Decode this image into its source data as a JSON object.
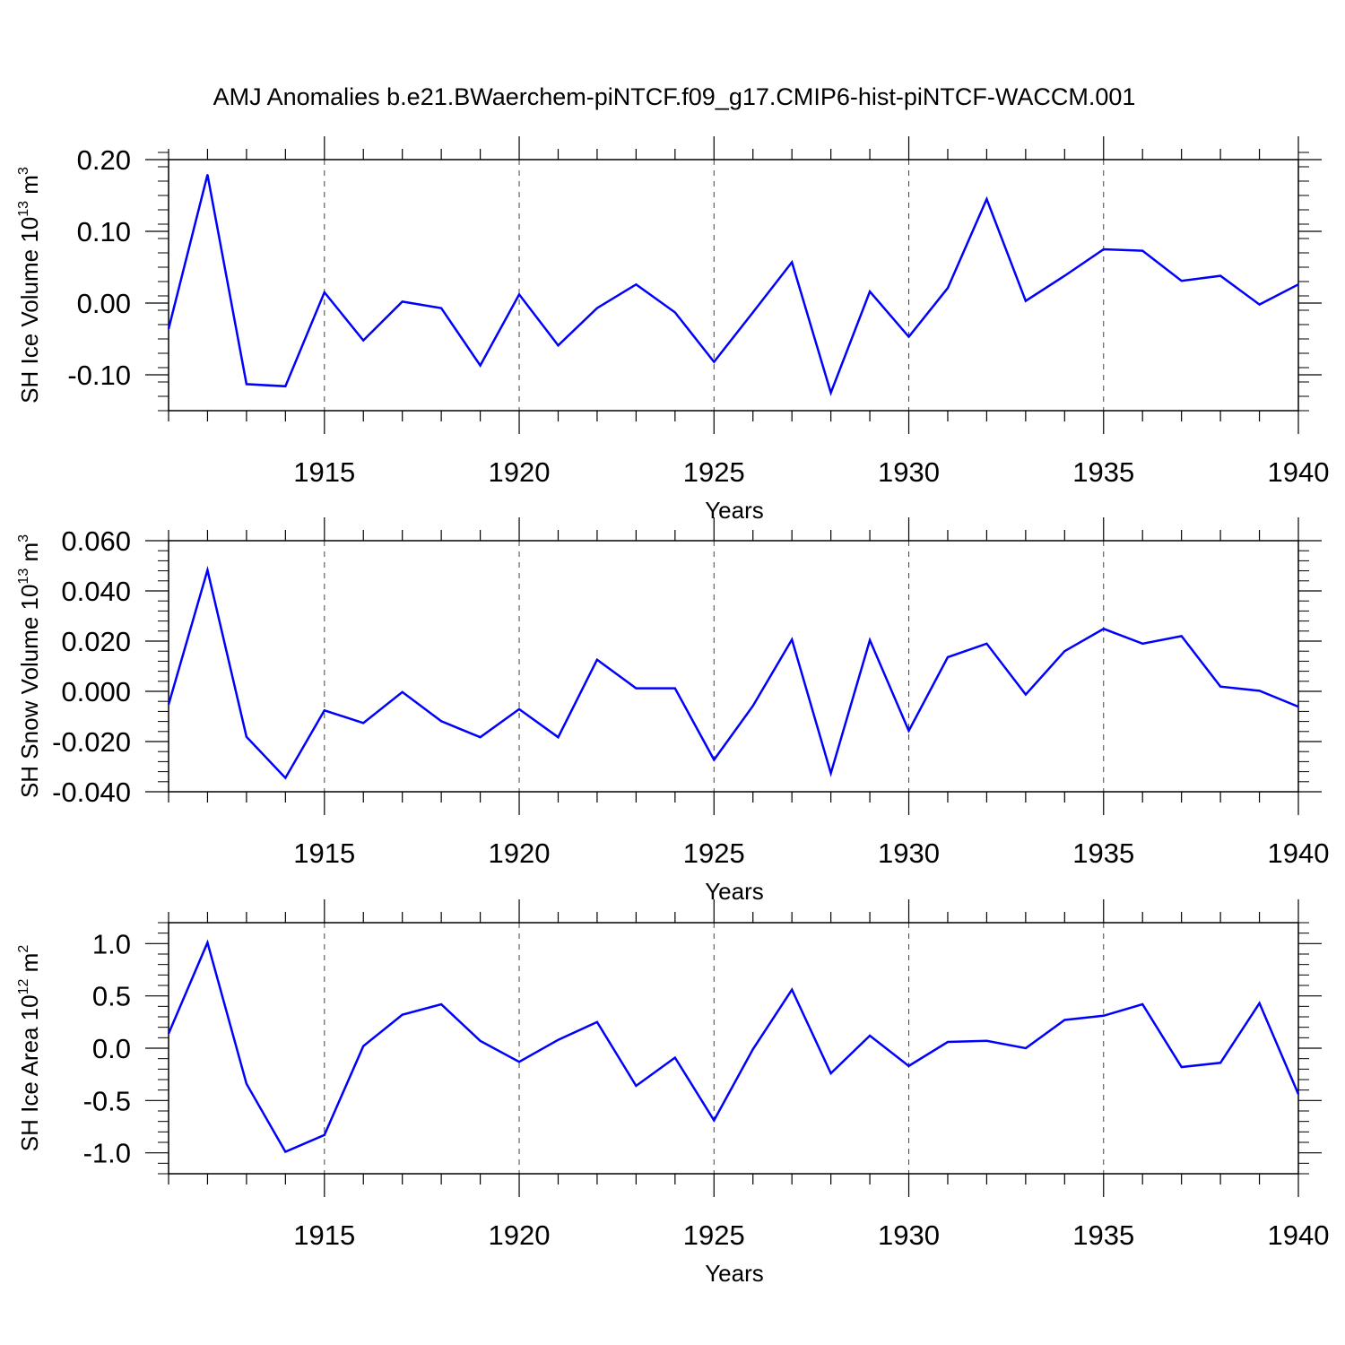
{
  "title": "AMJ Anomalies b.e21.BWaerchem-piNTCF.f09_g17.CMIP6-hist-piNTCF-WACCM.001",
  "chart_data": [
    {
      "type": "line",
      "ylabel": "SH Ice Volume 10",
      "ylabel_exp": "13",
      "ylabel_unit": " m",
      "ylabel_unit_exp": "3",
      "xlabel": "Years",
      "xlim": [
        1911,
        1940
      ],
      "ylim": [
        -0.15,
        0.2
      ],
      "yticks": [
        -0.1,
        0.0,
        0.1,
        0.2
      ],
      "ytick_labels": [
        "-0.10",
        "0.00",
        "0.10",
        "0.20"
      ],
      "xticks": [
        1915,
        1920,
        1925,
        1930,
        1935,
        1940
      ],
      "xtick_labels": [
        "1915",
        "1920",
        "1925",
        "1930",
        "1935",
        "1940"
      ],
      "x": [
        1911,
        1912,
        1913,
        1914,
        1915,
        1916,
        1917,
        1918,
        1919,
        1920,
        1921,
        1922,
        1923,
        1924,
        1925,
        1926,
        1927,
        1928,
        1929,
        1930,
        1931,
        1932,
        1933,
        1934,
        1935,
        1936,
        1937,
        1938,
        1939,
        1940
      ],
      "series": [
        {
          "name": "SH Ice Volume",
          "color": "#0000ff",
          "values": [
            -0.036,
            0.179,
            -0.113,
            -0.116,
            0.015,
            -0.052,
            0.002,
            -0.007,
            -0.087,
            0.012,
            -0.059,
            -0.007,
            0.026,
            -0.013,
            -0.082,
            -0.013,
            0.057,
            -0.125,
            0.016,
            -0.047,
            0.021,
            0.145,
            0.003,
            0.038,
            0.075,
            0.073,
            0.031,
            0.038,
            -0.002,
            0.026
          ]
        }
      ]
    },
    {
      "type": "line",
      "ylabel": "SH Snow Volume 10",
      "ylabel_exp": "13",
      "ylabel_unit": " m",
      "ylabel_unit_exp": "3",
      "xlabel": "Years",
      "xlim": [
        1911,
        1940
      ],
      "ylim": [
        -0.04,
        0.06
      ],
      "yticks": [
        -0.04,
        -0.02,
        0.0,
        0.02,
        0.04,
        0.06
      ],
      "ytick_labels": [
        "-0.040",
        "-0.020",
        "0.000",
        "0.020",
        "0.040",
        "0.060"
      ],
      "xticks": [
        1915,
        1920,
        1925,
        1930,
        1935,
        1940
      ],
      "xtick_labels": [
        "1915",
        "1920",
        "1925",
        "1930",
        "1935",
        "1940"
      ],
      "x": [
        1911,
        1912,
        1913,
        1914,
        1915,
        1916,
        1917,
        1918,
        1919,
        1920,
        1921,
        1922,
        1923,
        1924,
        1925,
        1926,
        1927,
        1928,
        1929,
        1930,
        1931,
        1932,
        1933,
        1934,
        1935,
        1936,
        1937,
        1938,
        1939,
        1940
      ],
      "series": [
        {
          "name": "SH Snow Volume",
          "color": "#0000ff",
          "values": [
            -0.0053,
            0.0483,
            -0.0181,
            -0.0345,
            -0.0076,
            -0.0126,
            -0.0003,
            -0.0119,
            -0.0183,
            -0.0071,
            -0.0183,
            0.0126,
            0.0012,
            0.0012,
            -0.0273,
            -0.0058,
            0.0206,
            -0.0326,
            0.0204,
            -0.0157,
            0.0136,
            0.019,
            -0.0013,
            0.016,
            0.0249,
            0.019,
            0.022,
            0.0019,
            0.0002,
            -0.0061
          ]
        }
      ]
    },
    {
      "type": "line",
      "ylabel": "SH Ice Area 10",
      "ylabel_exp": "12",
      "ylabel_unit": " m",
      "ylabel_unit_exp": "2",
      "xlabel": "Years",
      "xlim": [
        1911,
        1940
      ],
      "ylim": [
        -1.2,
        1.2
      ],
      "yticks": [
        -1.0,
        -0.5,
        0.0,
        0.5,
        1.0
      ],
      "ytick_labels": [
        "-1.0",
        "-0.5",
        "0.0",
        "0.5",
        "1.0"
      ],
      "xticks": [
        1915,
        1920,
        1925,
        1930,
        1935,
        1940
      ],
      "xtick_labels": [
        "1915",
        "1920",
        "1925",
        "1930",
        "1935",
        "1940"
      ],
      "x": [
        1911,
        1912,
        1913,
        1914,
        1915,
        1916,
        1917,
        1918,
        1919,
        1920,
        1921,
        1922,
        1923,
        1924,
        1925,
        1926,
        1927,
        1928,
        1929,
        1930,
        1931,
        1932,
        1933,
        1934,
        1935,
        1936,
        1937,
        1938,
        1939,
        1940
      ],
      "series": [
        {
          "name": "SH Ice Area",
          "color": "#0000ff",
          "values": [
            0.14,
            1.01,
            -0.34,
            -0.99,
            -0.83,
            0.02,
            0.32,
            0.42,
            0.07,
            -0.13,
            0.08,
            0.25,
            -0.36,
            -0.09,
            -0.69,
            -0.01,
            0.56,
            -0.24,
            0.12,
            -0.17,
            0.06,
            0.07,
            0.0,
            0.27,
            0.31,
            0.42,
            -0.18,
            -0.14,
            0.43,
            -0.44
          ]
        }
      ]
    }
  ]
}
